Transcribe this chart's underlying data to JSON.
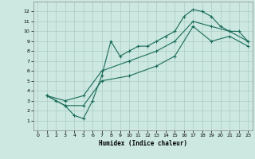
{
  "xlabel": "Humidex (Indice chaleur)",
  "bg_color": "#cce8e0",
  "grid_color": "#aaccc4",
  "line_color": "#1a6b5a",
  "xlim": [
    -0.5,
    23.5
  ],
  "ylim": [
    0,
    13
  ],
  "xticks": [
    0,
    1,
    2,
    3,
    4,
    5,
    6,
    7,
    8,
    9,
    10,
    11,
    12,
    13,
    14,
    15,
    16,
    17,
    18,
    19,
    20,
    21,
    22,
    23
  ],
  "yticks": [
    1,
    2,
    3,
    4,
    5,
    6,
    7,
    8,
    9,
    10,
    11,
    12
  ],
  "series1_x": [
    1,
    2,
    3,
    4,
    5,
    6,
    7,
    8,
    9,
    10,
    11,
    12,
    13,
    14,
    15,
    16,
    17,
    18,
    19,
    20,
    21,
    22,
    23
  ],
  "series1_y": [
    3.5,
    3.0,
    2.5,
    1.5,
    1.2,
    3.0,
    5.5,
    9.0,
    7.5,
    8.0,
    8.5,
    8.5,
    9.0,
    9.5,
    10.0,
    11.5,
    12.2,
    12.0,
    11.5,
    10.5,
    10.0,
    10.0,
    9.0
  ],
  "series2_x": [
    1,
    3,
    5,
    7,
    10,
    13,
    15,
    17,
    19,
    21,
    23
  ],
  "series2_y": [
    3.5,
    3.0,
    3.5,
    6.0,
    7.0,
    8.0,
    9.0,
    11.0,
    10.5,
    10.0,
    9.0
  ],
  "series3_x": [
    1,
    3,
    5,
    7,
    10,
    13,
    15,
    17,
    19,
    21,
    23
  ],
  "series3_y": [
    3.5,
    2.5,
    2.5,
    5.0,
    5.5,
    6.5,
    7.5,
    10.5,
    9.0,
    9.5,
    8.5
  ]
}
